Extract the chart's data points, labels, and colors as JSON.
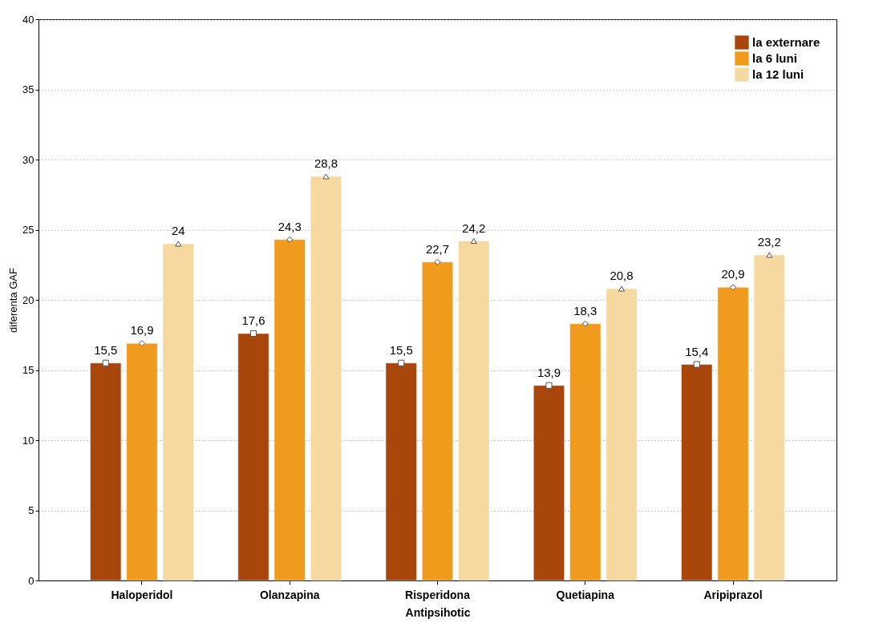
{
  "chart_data": {
    "type": "bar",
    "xlabel": "Antipsihotic",
    "ylabel": "diferenta GAF",
    "categories": [
      "Haloperidol",
      "Olanzapina",
      "Risperidona",
      "Quetiapina",
      "Aripiprazol"
    ],
    "series": [
      {
        "name": "la externare",
        "color": "#a8460c",
        "marker": "square",
        "values": [
          15.5,
          17.6,
          15.5,
          13.9,
          15.4
        ],
        "value_labels": [
          "15,5",
          "17,6",
          "15,5",
          "13,9",
          "15,4"
        ]
      },
      {
        "name": "la 6 luni",
        "color": "#f09a1e",
        "marker": "diamond",
        "values": [
          16.9,
          24.3,
          22.7,
          18.3,
          20.9
        ],
        "value_labels": [
          "16,9",
          "24,3",
          "22,7",
          "18,3",
          "20,9"
        ]
      },
      {
        "name": "la 12 luni",
        "color": "#f5d9a0",
        "marker": "triangle",
        "values": [
          24,
          28.8,
          24.2,
          20.8,
          23.2
        ],
        "value_labels": [
          "24",
          "28,8",
          "24,2",
          "20,8",
          "23,2"
        ]
      }
    ],
    "ylim": [
      0,
      40
    ],
    "yticks": [
      0,
      5,
      10,
      15,
      20,
      25,
      30,
      35,
      40
    ],
    "grid": "y",
    "legend": "top right"
  }
}
